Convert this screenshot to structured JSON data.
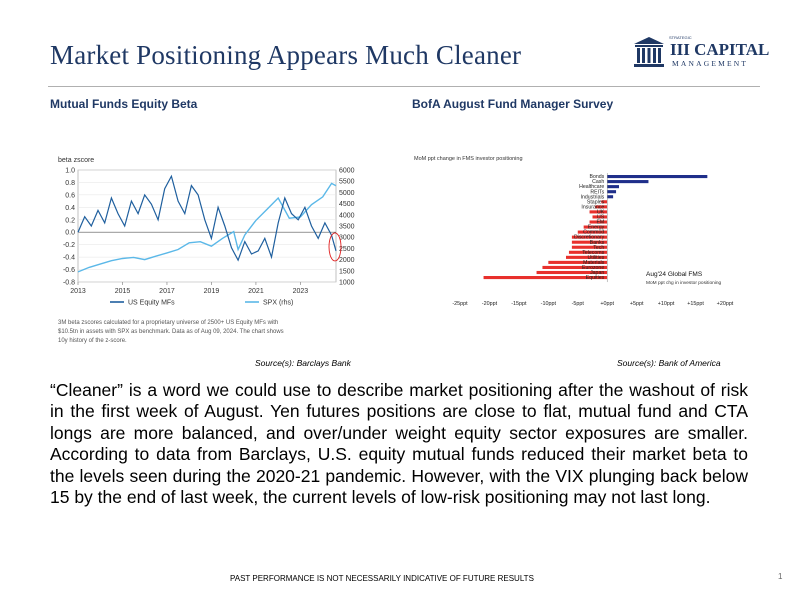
{
  "page": {
    "title": "Market Positioning Appears Much Cleaner",
    "logo": {
      "small": "STRATEGIC",
      "main": "III CAPITAL",
      "sub": "MANAGEMENT"
    },
    "footer": "PAST PERFORMANCE IS NOT NECESSARILY INDICATIVE OF FUTURE RESULTS",
    "page_number": "1"
  },
  "left_panel": {
    "heading": "Mutual Funds Equity Beta",
    "source": "Source(s): Barclays Bank",
    "note": [
      "3M beta zscores calculated for a proprietary universe of 2500+ US Equity MFs with",
      "$10.5tn in assets with SPX as benchmark. Data as of Aug 09, 2024. The chart shows",
      "10y history of the z-score."
    ]
  },
  "right_panel": {
    "heading": "BofA August Fund Manager Survey",
    "source": "Source(s): Bank of America"
  },
  "body_text": "“Cleaner” is a word we could use to describe market positioning after the washout of risk in the first week of August. Yen futures positions are close to flat, mutual fund and CTA longs are more balanced, and over/under weight equity sector exposures are smaller. According to data from Barclays, U.S. equity mutual funds reduced their market beta to the levels seen during the 2020-21 pandemic. However, with the VIX plunging back below 15 by the end of last week, the current levels of low-risk positioning may not last long.",
  "chart_data": [
    {
      "type": "line",
      "ylabel": "beta zscore",
      "y2label": "",
      "x_ticks": [
        "2013",
        "2015",
        "2017",
        "2019",
        "2021",
        "2023"
      ],
      "y_ticks": [
        "1.0",
        "0.8",
        "0.6",
        "0.4",
        "0.2",
        "0.0",
        "-0.2",
        "-0.4",
        "-0.6",
        "-0.8"
      ],
      "y2_ticks": [
        "6000",
        "5500",
        "5000",
        "4500",
        "4000",
        "3500",
        "3000",
        "2500",
        "2000",
        "1500",
        "1000"
      ],
      "ylim": [
        -0.8,
        1.0
      ],
      "y2lim": [
        1000,
        6000
      ],
      "xlim": [
        2013,
        2024.6
      ],
      "legend_position": "bottom",
      "series": [
        {
          "name": "US Equity MFs",
          "axis": "left",
          "color": "#1f5f9e",
          "x": [
            2013.0,
            2013.3,
            2013.6,
            2013.9,
            2014.2,
            2014.5,
            2014.8,
            2015.1,
            2015.4,
            2015.7,
            2016.0,
            2016.3,
            2016.6,
            2016.9,
            2017.2,
            2017.5,
            2017.8,
            2018.1,
            2018.4,
            2018.7,
            2019.0,
            2019.3,
            2019.6,
            2019.9,
            2020.2,
            2020.5,
            2020.8,
            2021.1,
            2021.4,
            2021.7,
            2022.0,
            2022.3,
            2022.6,
            2022.9,
            2023.2,
            2023.5,
            2023.8,
            2024.1,
            2024.4,
            2024.6
          ],
          "y": [
            0.0,
            0.25,
            0.1,
            0.35,
            0.15,
            0.55,
            0.3,
            0.1,
            0.5,
            0.3,
            0.6,
            0.45,
            0.2,
            0.7,
            0.9,
            0.5,
            0.3,
            0.75,
            0.6,
            0.2,
            -0.1,
            0.4,
            0.1,
            -0.25,
            -0.45,
            -0.15,
            -0.35,
            -0.3,
            -0.1,
            -0.4,
            0.15,
            0.55,
            0.3,
            0.2,
            0.4,
            0.1,
            -0.1,
            0.15,
            -0.05,
            -0.3
          ]
        },
        {
          "name": "SPX (rhs)",
          "axis": "right",
          "color": "#5bb8e8",
          "x": [
            2013.0,
            2013.5,
            2014.0,
            2014.5,
            2015.0,
            2015.5,
            2016.0,
            2016.5,
            2017.0,
            2017.5,
            2018.0,
            2018.5,
            2019.0,
            2019.5,
            2020.0,
            2020.2,
            2020.5,
            2021.0,
            2021.5,
            2022.0,
            2022.5,
            2023.0,
            2023.5,
            2024.0,
            2024.4,
            2024.6
          ],
          "y": [
            1450,
            1650,
            1800,
            1950,
            2050,
            2100,
            2000,
            2150,
            2300,
            2450,
            2750,
            2800,
            2600,
            2950,
            3250,
            2450,
            3100,
            3750,
            4250,
            4750,
            3850,
            3900,
            4450,
            4800,
            5400,
            5300
          ]
        }
      ],
      "annotations": [
        "red circle highlighting latest reading"
      ]
    },
    {
      "type": "bar",
      "title": "MoM ppt change in FMS investor positioning",
      "legend_title": "Aug'24 Global FMS",
      "legend_sub": "MoM ppt chg in investor positioning",
      "categories": [
        "Bonds",
        "Cash",
        "Healthcare",
        "REITs",
        "Industrials",
        "Staples",
        "Insurance",
        "UK",
        "US",
        "EM",
        "Energy",
        "Commod",
        "Discretionary",
        "Banks",
        "Tech",
        "Telecoms",
        "Utilities",
        "Materials",
        "Eurozone",
        "Japan",
        "Equities"
      ],
      "values": [
        17,
        7,
        2,
        1.5,
        1,
        -1,
        -2,
        -3,
        -2.5,
        -3,
        -4,
        -5,
        -6,
        -6,
        -6,
        -6.5,
        -7,
        -10,
        -11,
        -12,
        -21
      ],
      "x_ticks": [
        "-25ppt",
        "-20ppt",
        "-15ppt",
        "-10ppt",
        "-5ppt",
        "+0ppt",
        "+5ppt",
        "+10ppt",
        "+15ppt",
        "+20ppt"
      ],
      "xlim": [
        -25,
        20
      ],
      "colors": {
        "positive": "#1f2f8a",
        "negative": "#e8302c"
      }
    }
  ]
}
